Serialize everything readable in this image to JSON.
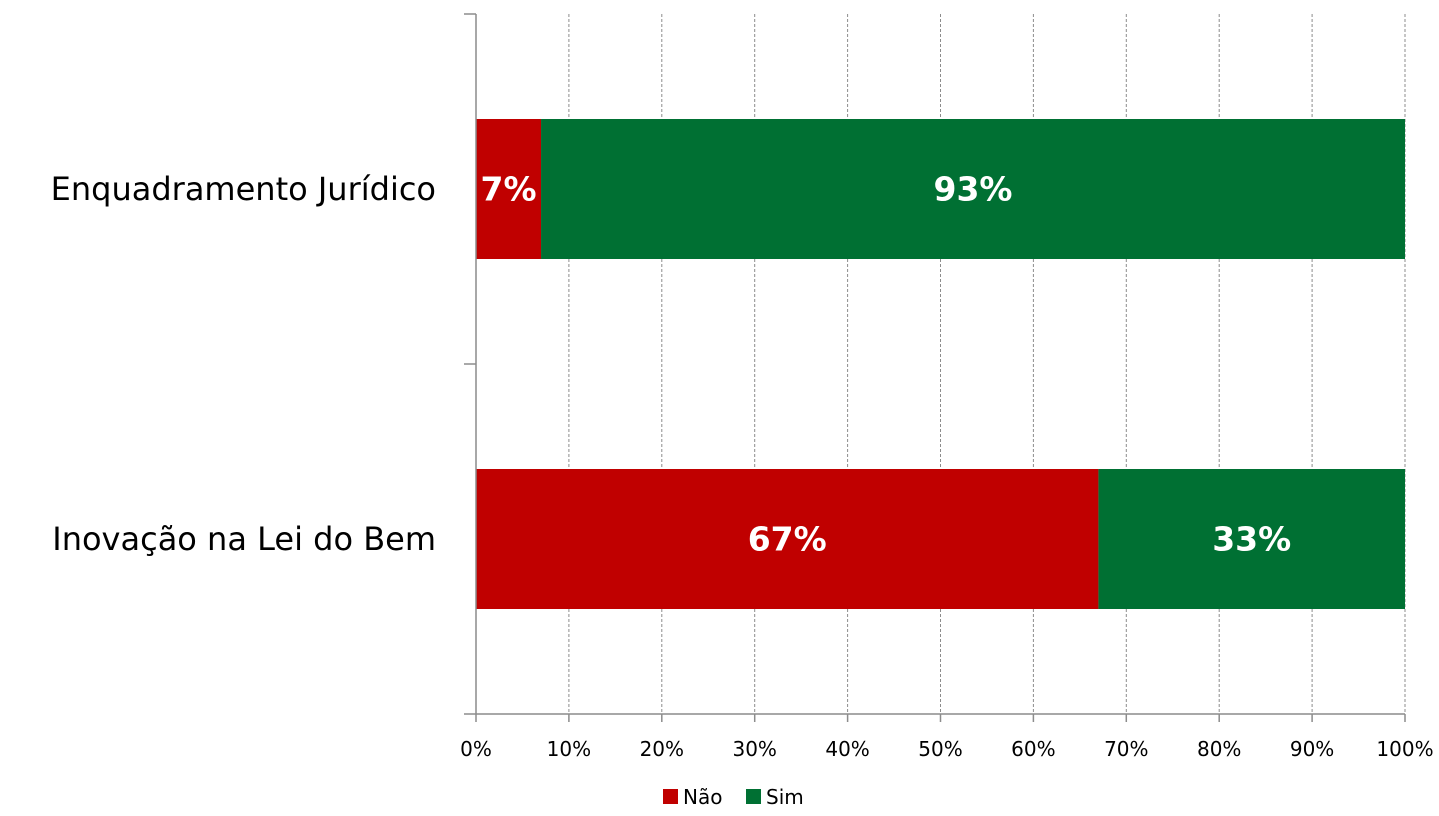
{
  "chart_data": {
    "type": "bar",
    "orientation": "horizontal",
    "stacked": "percent",
    "categories": [
      "Enquadramento Jurídico",
      "Inovação na Lei do Bem"
    ],
    "series": [
      {
        "name": "Não",
        "values": [
          7,
          67
        ],
        "labels": [
          "7%",
          "67%"
        ],
        "color": "#C00000"
      },
      {
        "name": "Sim",
        "values": [
          93,
          33
        ],
        "labels": [
          "93%",
          "33%"
        ],
        "color": "#007033"
      }
    ],
    "xlim": [
      0,
      100
    ],
    "xticks": [
      "0%",
      "10%",
      "20%",
      "30%",
      "40%",
      "50%",
      "60%",
      "70%",
      "80%",
      "90%",
      "100%"
    ],
    "grid": "vertical-dashed",
    "legend_position": "bottom"
  }
}
